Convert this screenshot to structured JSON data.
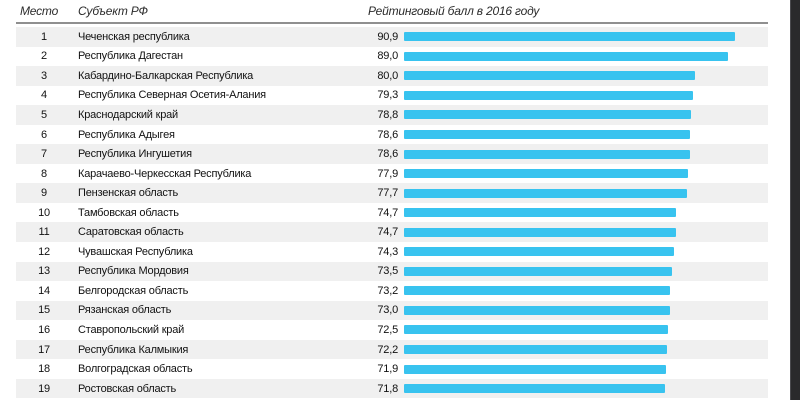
{
  "table": {
    "columns": {
      "rank": "Место",
      "region": "Субъект РФ",
      "score": "Рейтинговый балл в 2016 году"
    },
    "rows": [
      {
        "rank": "1",
        "region": "Чеченская республика",
        "score": "90,9",
        "value": 90.9
      },
      {
        "rank": "2",
        "region": "Республика Дагестан",
        "score": "89,0",
        "value": 89.0
      },
      {
        "rank": "3",
        "region": "Кабардино-Балкарская Республика",
        "score": "80,0",
        "value": 80.0
      },
      {
        "rank": "4",
        "region": "Республика Северная Осетия-Алания",
        "score": "79,3",
        "value": 79.3
      },
      {
        "rank": "5",
        "region": "Краснодарский край",
        "score": "78,8",
        "value": 78.8
      },
      {
        "rank": "6",
        "region": "Республика Адыгея",
        "score": "78,6",
        "value": 78.6
      },
      {
        "rank": "7",
        "region": "Республика Ингушетия",
        "score": "78,6",
        "value": 78.6
      },
      {
        "rank": "8",
        "region": "Карачаево-Черкесская Республика",
        "score": "77,9",
        "value": 77.9
      },
      {
        "rank": "9",
        "region": "Пензенская область",
        "score": "77,7",
        "value": 77.7
      },
      {
        "rank": "10",
        "region": "Тамбовская область",
        "score": "74,7",
        "value": 74.7
      },
      {
        "rank": "11",
        "region": "Саратовская область",
        "score": "74,7",
        "value": 74.7
      },
      {
        "rank": "12",
        "region": "Чувашская Республика",
        "score": "74,3",
        "value": 74.3
      },
      {
        "rank": "13",
        "region": "Республика Мордовия",
        "score": "73,5",
        "value": 73.5
      },
      {
        "rank": "14",
        "region": "Белгородская область",
        "score": "73,2",
        "value": 73.2
      },
      {
        "rank": "15",
        "region": "Рязанская область",
        "score": "73,0",
        "value": 73.0
      },
      {
        "rank": "16",
        "region": "Ставропольский край",
        "score": "72,5",
        "value": 72.5
      },
      {
        "rank": "17",
        "region": "Республика Калмыкия",
        "score": "72,2",
        "value": 72.2
      },
      {
        "rank": "18",
        "region": "Волгоградская область",
        "score": "71,9",
        "value": 71.9
      },
      {
        "rank": "19",
        "region": "Ростовская область",
        "score": "71,8",
        "value": 71.8
      }
    ]
  },
  "colors": {
    "bar": "#38c3ef",
    "stripe": "#f0f0f0",
    "rule": "#8f8f8f",
    "side_band": "#2a2a2c",
    "text": "#111111"
  },
  "chart_data": {
    "type": "bar",
    "orientation": "horizontal",
    "title": "Рейтинговый балл в 2016 году",
    "categories": [
      "Чеченская республика",
      "Республика Дагестан",
      "Кабардино-Балкарская Республика",
      "Республика Северная Осетия-Алания",
      "Краснодарский край",
      "Республика Адыгея",
      "Республика Ингушетия",
      "Карачаево-Черкесская Республика",
      "Пензенская область",
      "Тамбовская область",
      "Саратовская область",
      "Чувашская Республика",
      "Республика Мордовия",
      "Белгородская область",
      "Рязанская область",
      "Ставропольский край",
      "Республика Калмыкия",
      "Волгоградская область",
      "Ростовская область"
    ],
    "values": [
      90.9,
      89.0,
      80.0,
      79.3,
      78.8,
      78.6,
      78.6,
      77.9,
      77.7,
      74.7,
      74.7,
      74.3,
      73.5,
      73.2,
      73.0,
      72.5,
      72.2,
      71.9,
      71.8
    ],
    "xlabel": "",
    "ylabel": "",
    "xlim": [
      0,
      100
    ],
    "grid": false,
    "legend": false,
    "ranks": [
      1,
      2,
      3,
      4,
      5,
      6,
      7,
      8,
      9,
      10,
      11,
      12,
      13,
      14,
      15,
      16,
      17,
      18,
      19
    ]
  }
}
